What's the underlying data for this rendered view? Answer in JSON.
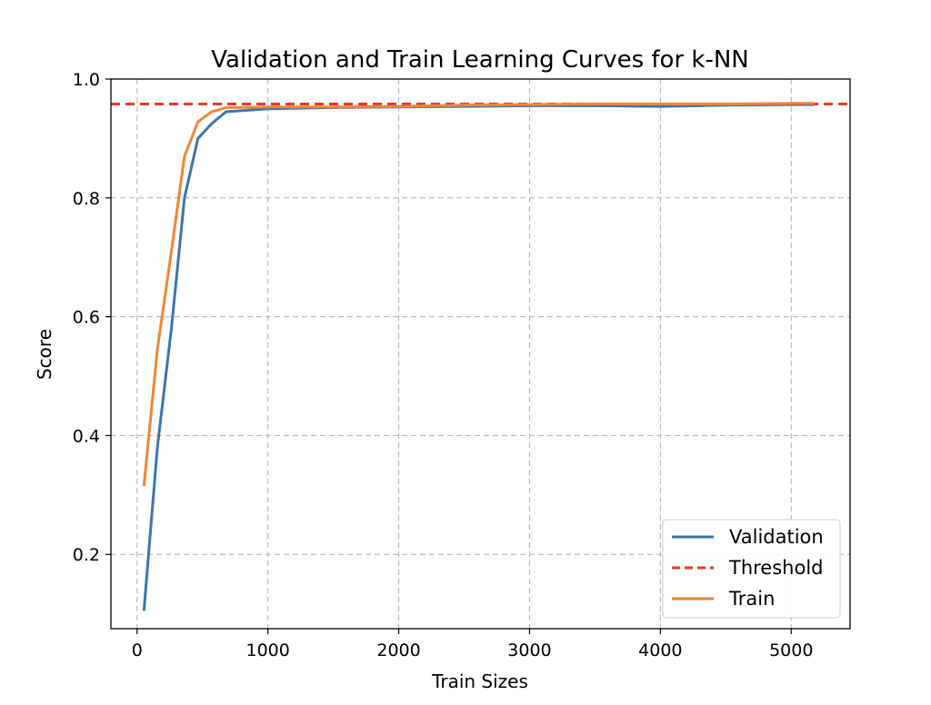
{
  "chart_data": {
    "type": "line",
    "title": "Validation and Train Learning Curves for k-NN",
    "xlabel": "Train Sizes",
    "ylabel": "Score",
    "xlim": [
      -200,
      5450
    ],
    "ylim": [
      0.075,
      1.0
    ],
    "xticks": [
      0,
      1000,
      2000,
      3000,
      4000,
      5000
    ],
    "yticks": [
      0.2,
      0.4,
      0.6,
      0.8,
      1.0
    ],
    "grid": true,
    "legend_position": "lower-right",
    "threshold": 0.958,
    "series": [
      {
        "name": "Validation",
        "color": "#3b75af",
        "style": "solid",
        "x": [
          52,
          155,
          262,
          362,
          465,
          570,
          680,
          1000,
          1500,
          2000,
          2500,
          3000,
          3500,
          4000,
          4500,
          5000,
          5180
        ],
        "y": [
          0.105,
          0.38,
          0.58,
          0.8,
          0.9,
          0.925,
          0.945,
          0.95,
          0.952,
          0.953,
          0.954,
          0.955,
          0.955,
          0.954,
          0.956,
          0.957,
          0.957
        ]
      },
      {
        "name": "Threshold",
        "color": "#e03a2f",
        "style": "dashed",
        "x": [
          -200,
          5450
        ],
        "y": [
          0.958,
          0.958
        ]
      },
      {
        "name": "Train",
        "color": "#ef8636",
        "style": "solid",
        "x": [
          52,
          155,
          262,
          362,
          465,
          570,
          680,
          1000,
          1500,
          2000,
          2500,
          3000,
          3500,
          4000,
          4500,
          5000,
          5180
        ],
        "y": [
          0.315,
          0.545,
          0.71,
          0.87,
          0.928,
          0.945,
          0.952,
          0.953,
          0.953,
          0.954,
          0.956,
          0.957,
          0.958,
          0.958,
          0.958,
          0.959,
          0.959
        ]
      }
    ]
  }
}
